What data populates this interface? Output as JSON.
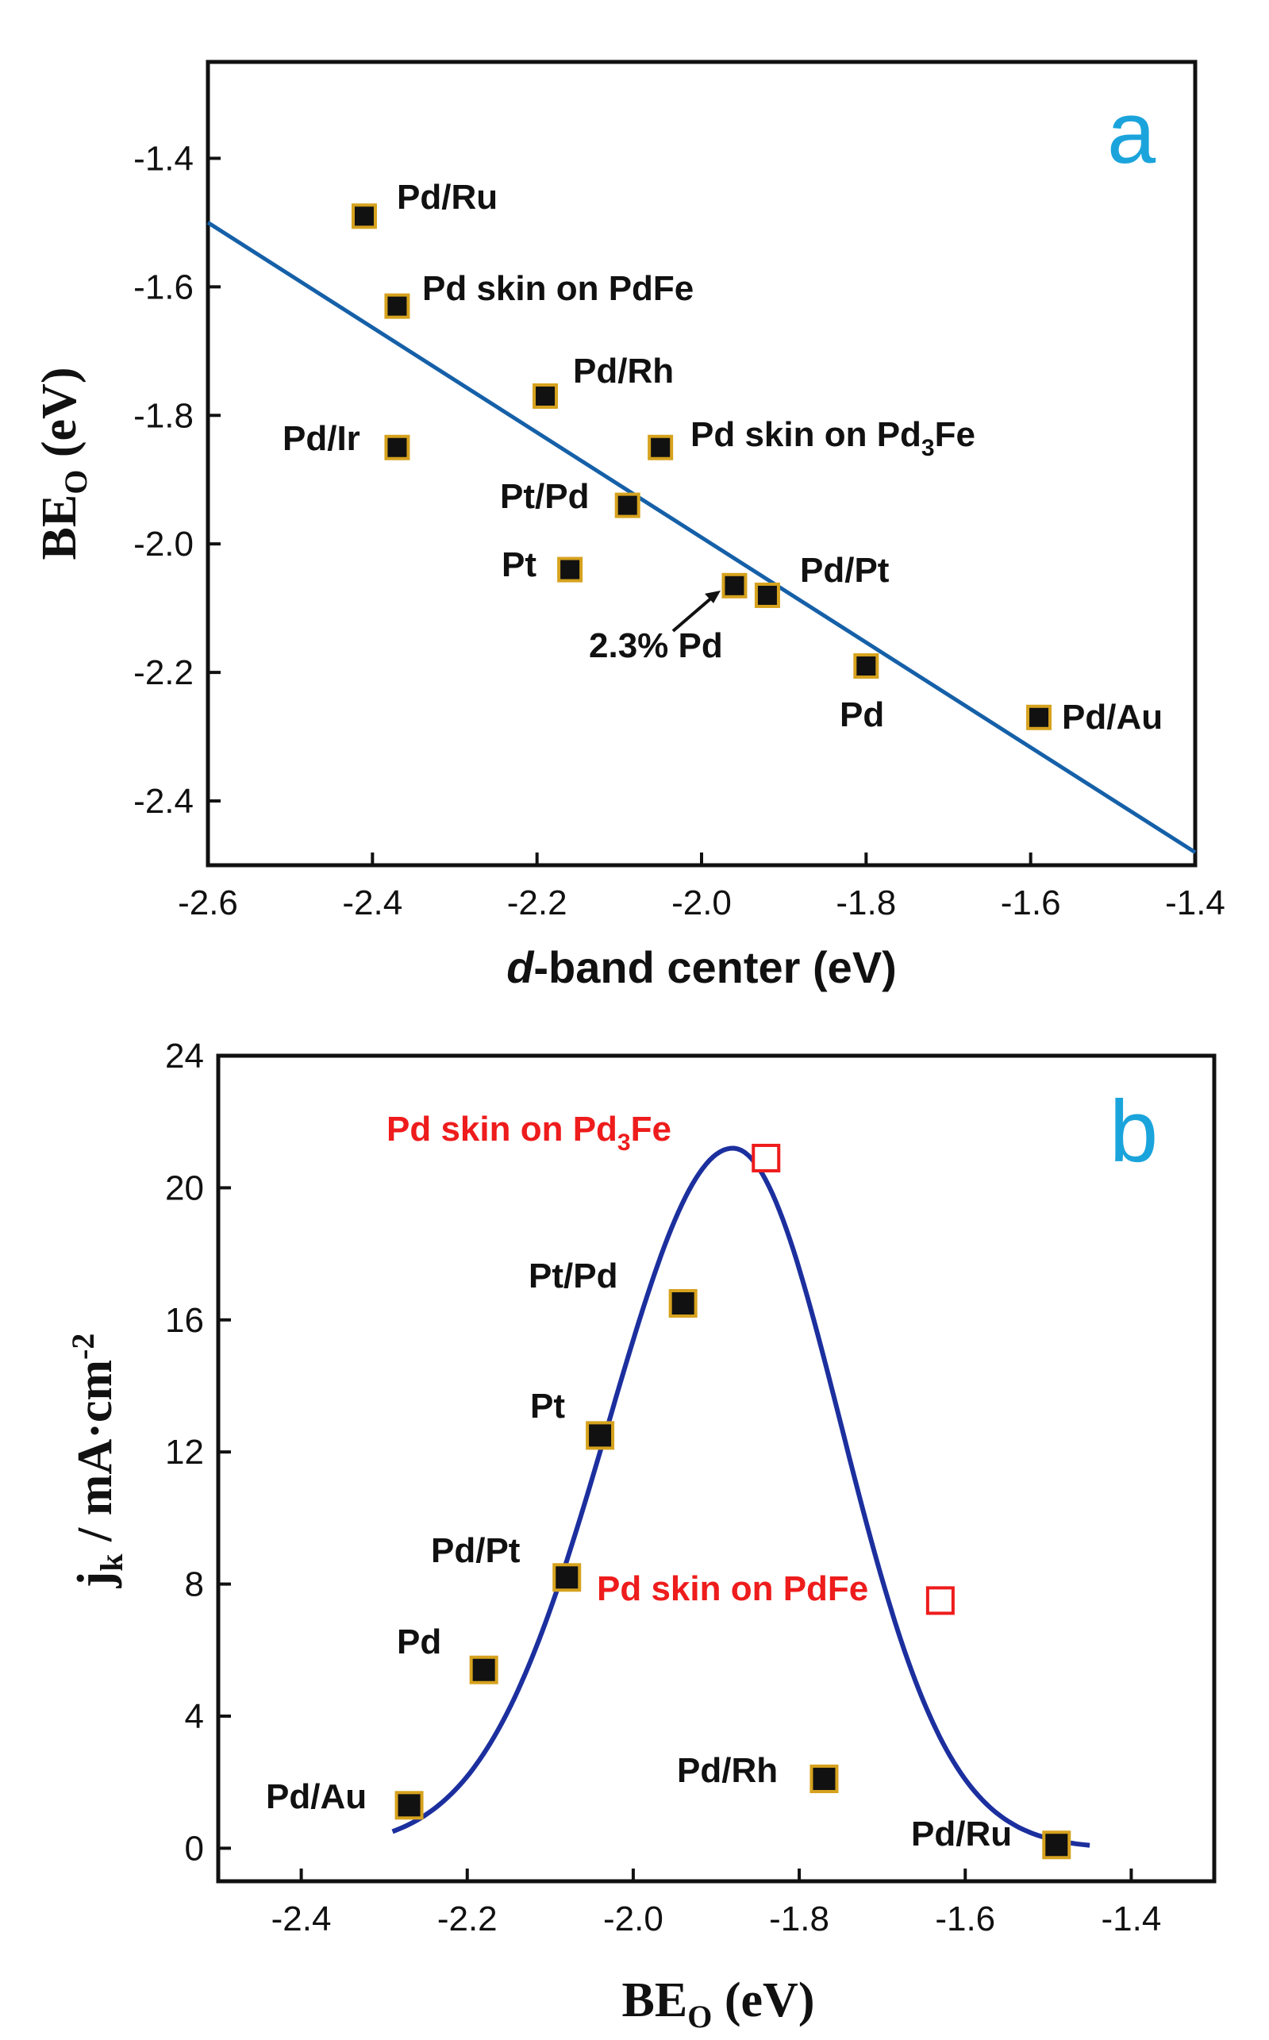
{
  "chart_data": [
    {
      "type": "scatter",
      "panel_label": "a",
      "xlabel_italic": "d",
      "xlabel_rest": "-band center (eV)",
      "ylabel_main": "BE",
      "ylabel_sub": "O",
      "ylabel_rest": " (eV)",
      "xlim": [
        -2.6,
        -1.4
      ],
      "ylim": [
        -2.5,
        -1.25
      ],
      "xticks": [
        "-2.6",
        "-2.4",
        "-2.2",
        "-2.0",
        "-1.8",
        "-1.6",
        "-1.4"
      ],
      "yticks": [
        "-1.4",
        "-1.6",
        "-1.8",
        "-2.0",
        "-2.2",
        "-2.4"
      ],
      "points": [
        {
          "name": "Pd/Ru",
          "x": -2.41,
          "y": -1.49
        },
        {
          "name": "Pd skin on PdFe",
          "x": -2.37,
          "y": -1.63
        },
        {
          "name": "Pd/Rh",
          "x": -2.19,
          "y": -1.77
        },
        {
          "name": "Pd/Ir",
          "x": -2.37,
          "y": -1.85
        },
        {
          "name": "Pd skin on Pd3Fe",
          "x": -2.05,
          "y": -1.85
        },
        {
          "name": "Pt/Pd",
          "x": -2.09,
          "y": -1.94
        },
        {
          "name": "Pt",
          "x": -2.16,
          "y": -2.04
        },
        {
          "name": "2.3% Pd",
          "x": -1.96,
          "y": -2.065
        },
        {
          "name": "Pd/Pt",
          "x": -1.92,
          "y": -2.08
        },
        {
          "name": "Pd",
          "x": -1.8,
          "y": -2.19
        },
        {
          "name": "Pd/Au",
          "x": -1.59,
          "y": -2.27
        }
      ],
      "labels": {
        "pd_ru": "Pd/Ru",
        "pd_skin_pdfe": "Pd skin on PdFe",
        "pd_rh": "Pd/Rh",
        "pd_ir": "Pd/Ir",
        "pd_skin_pd3fe_main": "Pd skin on Pd",
        "pd_skin_pd3fe_sub": "3",
        "pd_skin_pd3fe_end": "Fe",
        "pt_pd": "Pt/Pd",
        "pt": "Pt",
        "pd23": "2.3% Pd",
        "pd_pt": "Pd/Pt",
        "pd": "Pd",
        "pd_au": "Pd/Au"
      },
      "fit_line": {
        "x": [
          -2.6,
          -1.4
        ],
        "y": [
          -1.5,
          -2.48
        ]
      },
      "colors": {
        "line": "#1560a8",
        "marker": "#111111",
        "marker_edge": "#d6a21e",
        "panel_label": "#1ba4dc"
      }
    },
    {
      "type": "scatter",
      "panel_label": "b",
      "xlabel_main": "BE",
      "xlabel_sub": "O",
      "xlabel_rest": " (eV)",
      "ylabel_main": "j",
      "ylabel_sub": "k",
      "ylabel_rest": " / mA·cm",
      "ylabel_sup": "-2",
      "xlim": [
        -2.5,
        -1.3
      ],
      "ylim": [
        -1,
        24
      ],
      "xticks": [
        "-2.4",
        "-2.2",
        "-2.0",
        "-1.8",
        "-1.6",
        "-1.4"
      ],
      "yticks": [
        "0",
        "4",
        "8",
        "12",
        "16",
        "20",
        "24"
      ],
      "points": [
        {
          "name": "Pd/Au",
          "x": -2.27,
          "y": 1.3
        },
        {
          "name": "Pd",
          "x": -2.18,
          "y": 5.4
        },
        {
          "name": "Pd/Pt",
          "x": -2.08,
          "y": 8.2
        },
        {
          "name": "Pt",
          "x": -2.04,
          "y": 12.5
        },
        {
          "name": "Pt/Pd",
          "x": -1.94,
          "y": 16.5
        },
        {
          "name": "Pd/Rh",
          "x": -1.77,
          "y": 2.1
        },
        {
          "name": "Pd/Ru",
          "x": -1.49,
          "y": 0.1
        }
      ],
      "highlight_points": [
        {
          "name": "Pd skin on Pd3Fe",
          "x": -1.84,
          "y": 20.9
        },
        {
          "name": "Pd skin on PdFe",
          "x": -1.63,
          "y": 7.5
        }
      ],
      "labels": {
        "pd_au": "Pd/Au",
        "pd": "Pd",
        "pd_pt": "Pd/Pt",
        "pt": "Pt",
        "pt_pd": "Pt/Pd",
        "pd_rh": "Pd/Rh",
        "pd_ru": "Pd/Ru",
        "pd_skin_pd3fe_main": "Pd skin on Pd",
        "pd_skin_pd3fe_sub": "3",
        "pd_skin_pd3fe_end": "Fe",
        "pd_skin_pdfe": "Pd skin on PdFe"
      },
      "curve": {
        "peak_x": -1.88,
        "peak_y": 21.2,
        "x_range": [
          -2.29,
          -1.45
        ],
        "sigma_left": 0.15,
        "sigma_right": 0.13
      },
      "colors": {
        "curve": "#1c2f9e",
        "marker": "#111111",
        "marker_edge": "#d6a21e",
        "highlight": "#ee1c1c",
        "panel_label": "#1ba4dc"
      }
    }
  ]
}
